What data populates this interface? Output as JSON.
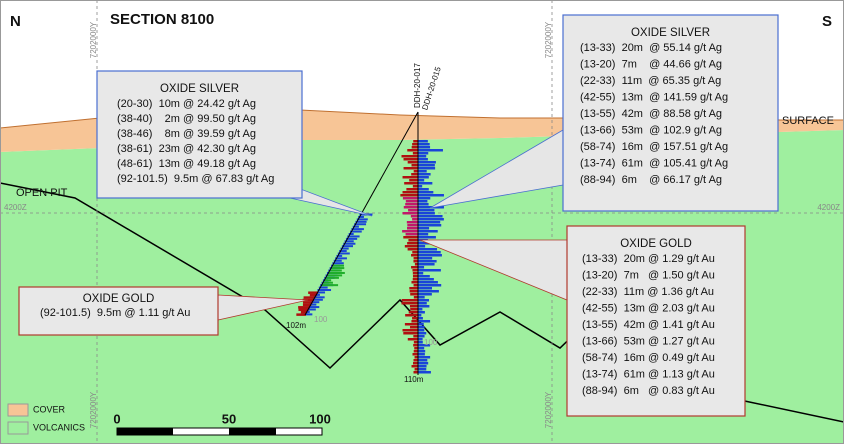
{
  "header": {
    "north": "N",
    "south": "S",
    "title": "SECTION 8100"
  },
  "labels": {
    "surface": "SURFACE",
    "open_pit": "OPEN PIT",
    "elev_left": "4200Z",
    "elev_right": "4200Z",
    "grid_top_left": "7202000Y",
    "grid_top_mid": "7202000Y",
    "grid_bottom_left": "7202000Y",
    "grid_bottom_mid": "7202000Y",
    "hole_a": "DDH-20-017",
    "hole_b": "DDH-20-015",
    "depth_a": "102m",
    "depth_b": "110m",
    "tick_a": "100",
    "tick_b": "100"
  },
  "callouts": [
    {
      "title": "OXIDE SILVER",
      "rows": [
        "(20-30)  10m @ 24.42 g/t Ag",
        "(38-40)    2m @ 99.50 g/t Ag",
        "(38-46)    8m @ 39.59 g/t Ag",
        "(38-61)  23m @ 42.30 g/t Ag",
        "(48-61)  13m @ 49.18 g/t Ag",
        "(92-101.5)  9.5m @ 67.83 g/t Ag"
      ]
    },
    {
      "title": "OXIDE SILVER",
      "rows": [
        "(13-33)  20m  @ 55.14 g/t Ag",
        "(13-20)  7m    @ 44.66 g/t Ag",
        "(22-33)  11m  @ 65.35 g/t Ag",
        "(42-55)  13m  @ 141.59 g/t Ag",
        "(13-55)  42m  @ 88.58 g/t Ag",
        "(13-66)  53m  @ 102.9 g/t Ag",
        "(58-74)  16m  @ 157.51 g/t Ag",
        "(13-74)  61m  @ 105.41 g/t Ag",
        "(88-94)  6m    @ 66.17 g/t Ag"
      ]
    },
    {
      "title": "OXIDE GOLD",
      "rows": [
        "(13-33)  20m @ 1.29 g/t Au",
        "(13-20)  7m   @ 1.50 g/t Au",
        "(22-33)  11m @ 1.36 g/t Au",
        "(42-55)  13m @ 2.03 g/t Au",
        "(13-55)  42m @ 1.41 g/t Au",
        "(13-66)  53m @ 1.27 g/t Au",
        "(58-74)  16m @ 0.49 g/t Au",
        "(13-74)  61m @ 1.13 g/t Au",
        "(88-94)  6m   @ 0.83 g/t Au"
      ]
    },
    {
      "title": "OXIDE GOLD",
      "rows": [
        "(92-101.5)  9.5m @ 1.11 g/t Au"
      ]
    }
  ],
  "legend": {
    "items": [
      "COVER",
      "VOLCANICS"
    ]
  },
  "scale_bar": {
    "labels": [
      0,
      50,
      100
    ]
  }
}
